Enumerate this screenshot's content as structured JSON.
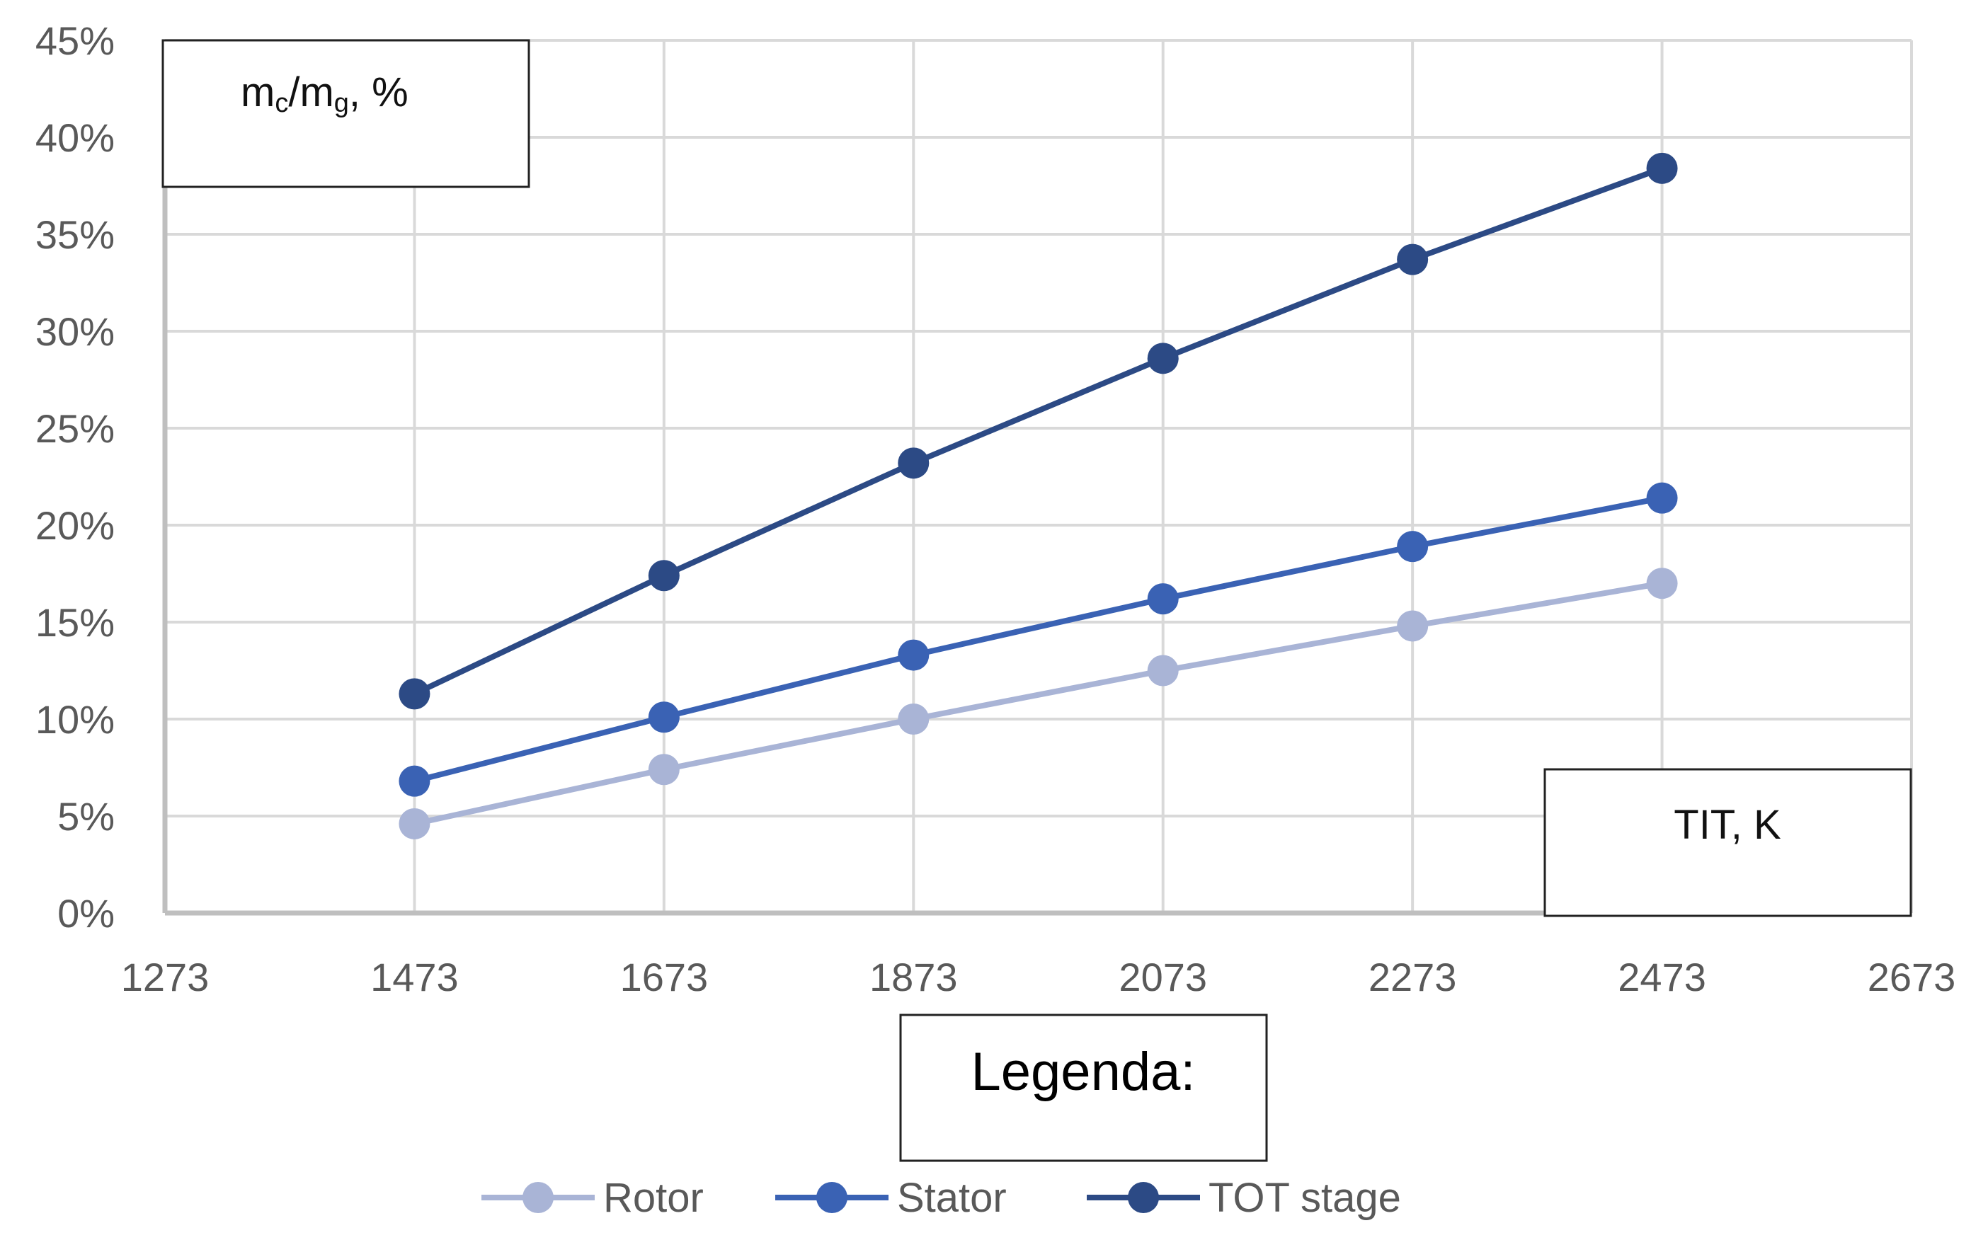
{
  "chart_data": {
    "type": "line",
    "y_label_box": {
      "main": "m",
      "sub1": "c",
      "mid": "/m",
      "sub2": "g",
      "tail": ", %"
    },
    "xlabel": "TIT, K",
    "legend_title": "Legenda:",
    "legend_placement": "bottom",
    "grid": true,
    "xlim": [
      1273,
      2673
    ],
    "ylim": [
      0,
      45
    ],
    "x_ticks": [
      1273,
      1473,
      1673,
      1873,
      2073,
      2273,
      2473,
      2673
    ],
    "x_tick_labels": [
      "1273",
      "1473",
      "1673",
      "1873",
      "2073",
      "2273",
      "2473",
      "2673"
    ],
    "y_ticks": [
      0,
      5,
      10,
      15,
      20,
      25,
      30,
      35,
      40,
      45
    ],
    "y_tick_labels": [
      "0%",
      "5%",
      "10%",
      "15%",
      "20%",
      "25%",
      "30%",
      "35%",
      "40%",
      "45%"
    ],
    "x": [
      1473,
      1673,
      1873,
      2073,
      2273,
      2473
    ],
    "series": [
      {
        "name": "Rotor",
        "color": "#A9B4D6",
        "values": [
          4.6,
          7.4,
          10.0,
          12.5,
          14.8,
          17.0
        ]
      },
      {
        "name": "Stator",
        "color": "#3A62B4",
        "values": [
          6.8,
          10.1,
          13.3,
          16.2,
          18.9,
          21.4
        ]
      },
      {
        "name": "TOT stage",
        "color": "#2C4A85",
        "values": [
          11.3,
          17.4,
          23.2,
          28.6,
          33.7,
          38.4
        ]
      }
    ]
  }
}
